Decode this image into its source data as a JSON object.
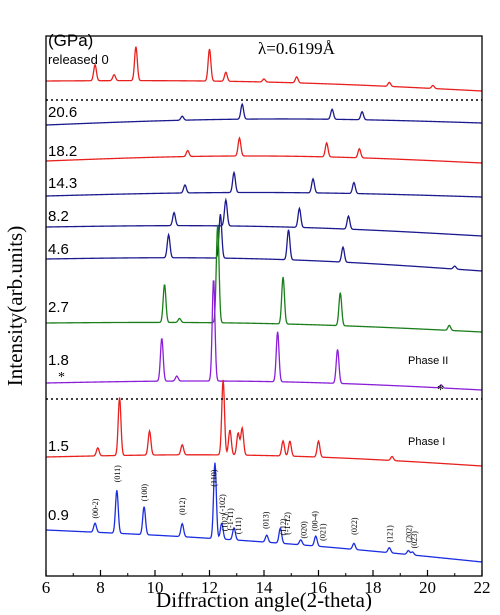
{
  "chart_data": {
    "type": "line",
    "xlabel": "Diffraction angle(2-theta)",
    "ylabel": "Intensity(arb.units)",
    "xlim": [
      6,
      22
    ],
    "x_ticks": [
      "6",
      "8",
      "10",
      "12",
      "14",
      "16",
      "18",
      "20",
      "22"
    ],
    "unit_label": "(GPa)",
    "wavelength": "λ=0.6199Å",
    "phase_labels": [
      "Phase II",
      "Phase I"
    ],
    "asterisk_marks": [
      {
        "x": 6.6,
        "label": "*"
      },
      {
        "x": 20.5,
        "label": "*"
      }
    ],
    "series": [
      {
        "name": "released 0",
        "color": "#e8201e",
        "peaks": [
          [
            7.8,
            16
          ],
          [
            8.5,
            6
          ],
          [
            9.3,
            34
          ],
          [
            12.0,
            32
          ],
          [
            12.6,
            9
          ],
          [
            14.0,
            3
          ],
          [
            15.2,
            6
          ],
          [
            18.6,
            4
          ],
          [
            20.2,
            3
          ]
        ]
      },
      {
        "name": "20.6",
        "color": "#1b1a8e",
        "peaks": [
          [
            11.0,
            4
          ],
          [
            13.2,
            15
          ],
          [
            16.5,
            10
          ],
          [
            17.6,
            8
          ]
        ]
      },
      {
        "name": "18.2",
        "color": "#e8201e",
        "peaks": [
          [
            11.2,
            6
          ],
          [
            13.1,
            18
          ],
          [
            16.3,
            14
          ],
          [
            17.5,
            9
          ]
        ]
      },
      {
        "name": "14.3",
        "color": "#1b1a8e",
        "peaks": [
          [
            11.1,
            8
          ],
          [
            12.9,
            20
          ],
          [
            15.8,
            14
          ],
          [
            17.3,
            11
          ]
        ]
      },
      {
        "name": "8.2",
        "color": "#1b1a8e",
        "peaks": [
          [
            10.7,
            13
          ],
          [
            12.6,
            26
          ],
          [
            15.3,
            19
          ],
          [
            17.1,
            13
          ]
        ]
      },
      {
        "name": "4.6",
        "color": "#1b1a8e",
        "peaks": [
          [
            10.5,
            23
          ],
          [
            12.4,
            44
          ],
          [
            14.9,
            30
          ],
          [
            16.9,
            15
          ],
          [
            21.0,
            3
          ]
        ]
      },
      {
        "name": "2.7",
        "color": "#1a7f1a",
        "peaks": [
          [
            10.35,
            38
          ],
          [
            10.9,
            4
          ],
          [
            12.3,
            98
          ],
          [
            14.7,
            47
          ],
          [
            16.8,
            33
          ],
          [
            20.8,
            5
          ]
        ]
      },
      {
        "name": "1.8",
        "color": "#8b1fd8",
        "peaks": [
          [
            10.25,
            43
          ],
          [
            10.8,
            5
          ],
          [
            12.15,
            102
          ],
          [
            14.5,
            50
          ],
          [
            16.7,
            34
          ],
          [
            20.5,
            3
          ]
        ]
      },
      {
        "name": "1.5",
        "color": "#e8201e",
        "peaks": [
          [
            7.9,
            8
          ],
          [
            8.7,
            58
          ],
          [
            9.8,
            24
          ],
          [
            11.0,
            10
          ],
          [
            12.5,
            75
          ],
          [
            12.75,
            25
          ],
          [
            13.05,
            22
          ],
          [
            13.2,
            27
          ],
          [
            14.7,
            15
          ],
          [
            14.95,
            15
          ],
          [
            16.0,
            16
          ],
          [
            18.7,
            4
          ]
        ]
      },
      {
        "name": "0.9",
        "color": "#1b2ee0",
        "peaks": [
          [
            7.8,
            9
          ],
          [
            8.6,
            43
          ],
          [
            9.6,
            28
          ],
          [
            11.0,
            13
          ],
          [
            12.2,
            76
          ],
          [
            12.45,
            16
          ],
          [
            12.9,
            12
          ],
          [
            14.1,
            7
          ],
          [
            14.6,
            15
          ],
          [
            15.35,
            5
          ],
          [
            15.9,
            10
          ],
          [
            17.3,
            6
          ],
          [
            18.6,
            5
          ],
          [
            19.3,
            4
          ],
          [
            19.45,
            3
          ]
        ]
      }
    ],
    "hkl_labels": [
      {
        "text": "(00-2)",
        "x": 7.8
      },
      {
        "text": "(011)",
        "x": 8.6
      },
      {
        "text": "(100)",
        "x": 9.6
      },
      {
        "text": "(012)",
        "x": 11.0
      },
      {
        "text": "(110)",
        "x": 12.15
      },
      {
        "text": "(-102)",
        "x": 12.45
      },
      {
        "text": "(102)",
        "x": 12.55
      },
      {
        "text": "(-1-11)",
        "x": 12.75
      },
      {
        "text": "(111)",
        "x": 13.05
      },
      {
        "text": "(013)",
        "x": 14.05
      },
      {
        "text": "(112)",
        "x": 14.7
      },
      {
        "text": "(-1-12)",
        "x": 14.85
      },
      {
        "text": "(020)",
        "x": 15.45
      },
      {
        "text": "(00-4)",
        "x": 15.85
      },
      {
        "text": "(021)",
        "x": 16.15
      },
      {
        "text": "(022)",
        "x": 17.3
      },
      {
        "text": "(121)",
        "x": 18.6
      },
      {
        "text": "(202)",
        "x": 19.3
      },
      {
        "text": "(023)",
        "x": 19.5
      }
    ]
  }
}
